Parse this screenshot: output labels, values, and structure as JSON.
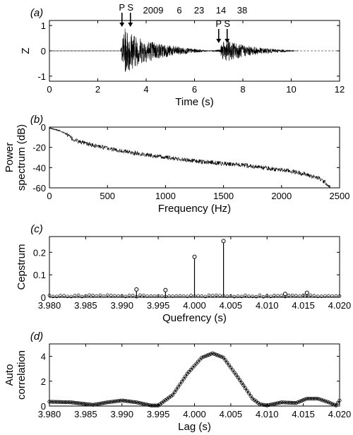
{
  "chart_data": [
    {
      "panel_label": "(a)",
      "type": "line",
      "xlabel": "Time (s)",
      "ylabel": "Z",
      "xlim": [
        0,
        12
      ],
      "ylim": [
        -1.2,
        1.2
      ],
      "xticks": [
        0,
        2,
        4,
        6,
        8,
        10,
        12
      ],
      "yticks": [
        -1,
        0,
        1
      ],
      "reference_line": 0,
      "date_text": [
        "2009",
        "6",
        "23",
        "14",
        "38"
      ],
      "arrivals": [
        {
          "label": "P",
          "time": 3.0
        },
        {
          "label": "S",
          "time": 3.35
        },
        {
          "label": "P",
          "time": 7.0
        },
        {
          "label": "S",
          "time": 7.35
        }
      ],
      "envelope": {
        "x": [
          2.95,
          3.1,
          3.4,
          3.7,
          4.0,
          4.5,
          5.0,
          5.5,
          6.0,
          6.4,
          6.6,
          7.05,
          7.15,
          7.4,
          7.8,
          8.2,
          8.8,
          9.5,
          10.1
        ],
        "y": [
          0.1,
          0.9,
          0.75,
          0.55,
          0.45,
          0.32,
          0.22,
          0.14,
          0.08,
          0.03,
          0.01,
          0.05,
          0.35,
          0.4,
          0.3,
          0.2,
          0.12,
          0.06,
          0.02
        ]
      }
    },
    {
      "panel_label": "(b)",
      "type": "line",
      "xlabel": "Frequency (Hz)",
      "ylabel": "Power spectrum (dB)",
      "ylabel_lines": [
        "Power",
        "spectrum (dB)"
      ],
      "xlim": [
        0,
        2500
      ],
      "ylim": [
        -60,
        0
      ],
      "xticks": [
        0,
        500,
        1000,
        1500,
        2000,
        2500
      ],
      "yticks": [
        -60,
        -40,
        -20,
        0
      ],
      "series": [
        {
          "x": [
            0,
            50,
            100,
            150,
            200,
            300,
            500,
            700,
            1000,
            1300,
            1500,
            1700,
            1900,
            2050,
            2150,
            2250,
            2330,
            2380,
            2420
          ],
          "y": [
            -1,
            -2,
            -4,
            -7,
            -12,
            -16,
            -21,
            -25,
            -30,
            -34,
            -36,
            -38,
            -41,
            -43,
            -45,
            -48,
            -51,
            -55,
            -60
          ]
        }
      ]
    },
    {
      "panel_label": "(c)",
      "type": "scatter",
      "xlabel": "Quefrency (s)",
      "ylabel": "Cepstrum",
      "xlim": [
        3.98,
        4.02
      ],
      "ylim": [
        0,
        0.27
      ],
      "xticks": [
        "3.980",
        "3.985",
        "3.990",
        "3.995",
        "4.000",
        "4.005",
        "4.010",
        "4.015",
        "4.020"
      ],
      "yticks": [
        "0",
        "0.1",
        "0.2"
      ],
      "peaks": [
        {
          "x": 3.992,
          "y": 0.035
        },
        {
          "x": 3.996,
          "y": 0.032
        },
        {
          "x": 4.0,
          "y": 0.18
        },
        {
          "x": 4.004,
          "y": 0.25
        },
        {
          "x": 4.0125,
          "y": 0.015
        },
        {
          "x": 4.0155,
          "y": 0.02
        }
      ],
      "baseline_points": {
        "start": 3.98,
        "end": 4.02,
        "step": 0.0005,
        "value": 0.006
      }
    },
    {
      "panel_label": "(d)",
      "type": "line",
      "xlabel": "Lag (s)",
      "ylabel": "Auto correlation",
      "ylabel_lines": [
        "Auto",
        "correlation"
      ],
      "xlim": [
        3.98,
        4.02
      ],
      "ylim": [
        0,
        5
      ],
      "xticks": [
        "3.980",
        "3.985",
        "3.990",
        "3.995",
        "4.000",
        "4.005",
        "4.010",
        "4.015",
        "4.020"
      ],
      "yticks": [
        0,
        2,
        4
      ],
      "marker": "circle",
      "series": [
        {
          "x": [
            3.98,
            3.983,
            3.986,
            3.988,
            3.99,
            3.992,
            3.994,
            3.995,
            3.997,
            3.999,
            4.001,
            4.0025,
            4.004,
            4.006,
            4.008,
            4.009,
            4.01,
            4.012,
            4.014,
            4.0155,
            4.017,
            4.0185,
            4.0195,
            4.02
          ],
          "y": [
            0.35,
            0.3,
            0.1,
            0.3,
            0.45,
            0.3,
            0.05,
            0.05,
            0.9,
            2.6,
            3.9,
            4.25,
            3.9,
            2.3,
            0.6,
            0.15,
            0.05,
            0.3,
            0.25,
            0.6,
            0.6,
            0.3,
            0.05,
            0.45
          ]
        }
      ]
    }
  ]
}
